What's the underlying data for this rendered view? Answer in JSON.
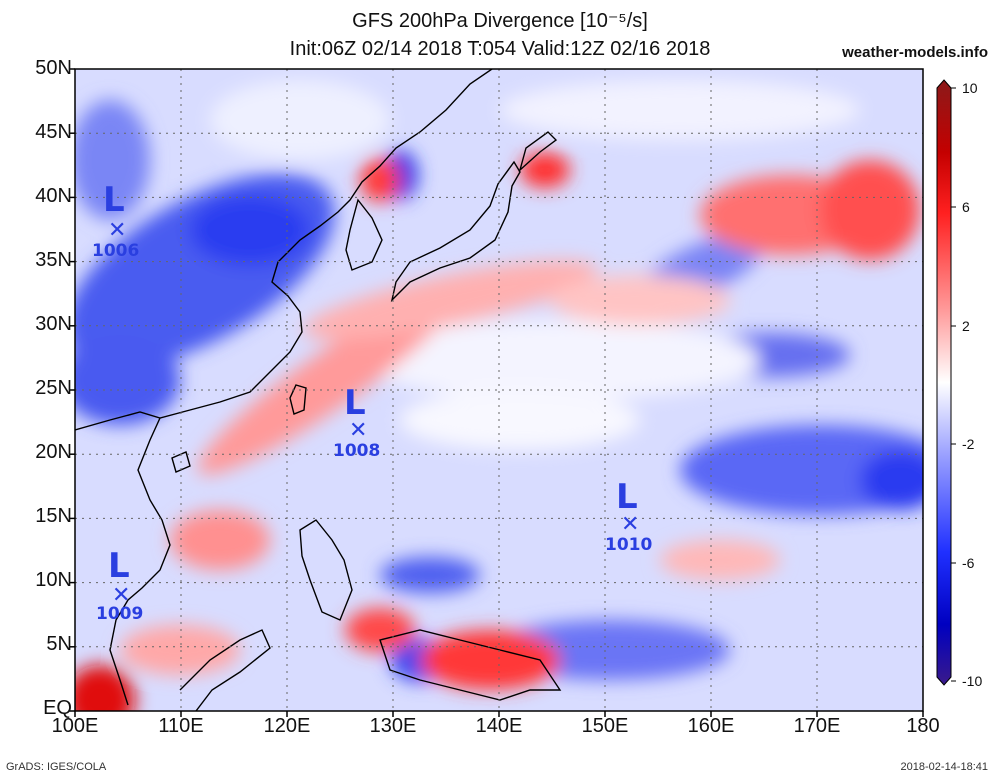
{
  "title": {
    "line1": "GFS 200hPa Divergence [10⁻⁵/s]",
    "line2": "Init:06Z 02/14 2018 T:054 Valid:12Z 02/16 2018",
    "site": "weather-models.info"
  },
  "footer": {
    "left": "GrADS: IGES/COLA",
    "right": "2018-02-14-18:41"
  },
  "axes": {
    "lat_labels": [
      "50N",
      "45N",
      "40N",
      "35N",
      "30N",
      "25N",
      "20N",
      "15N",
      "10N",
      "5N",
      "EQ"
    ],
    "lon_labels": [
      "100E",
      "110E",
      "120E",
      "130E",
      "140E",
      "150E",
      "160E",
      "170E",
      "180"
    ]
  },
  "colorbar": {
    "labels": [
      "10",
      "6",
      "2",
      "-2",
      "-6",
      "-10"
    ],
    "colors": [
      "#8b1a1a",
      "#cc0000",
      "#ff3030",
      "#ff9a9a",
      "#ffffff",
      "#9a9aff",
      "#3030ff",
      "#0000cc",
      "#3a1a8b"
    ]
  },
  "lows": [
    {
      "letter": "L",
      "pressure": "1006"
    },
    {
      "letter": "L",
      "pressure": "1008"
    },
    {
      "letter": "L",
      "pressure": "1010"
    },
    {
      "letter": "L",
      "pressure": "1009"
    }
  ]
}
